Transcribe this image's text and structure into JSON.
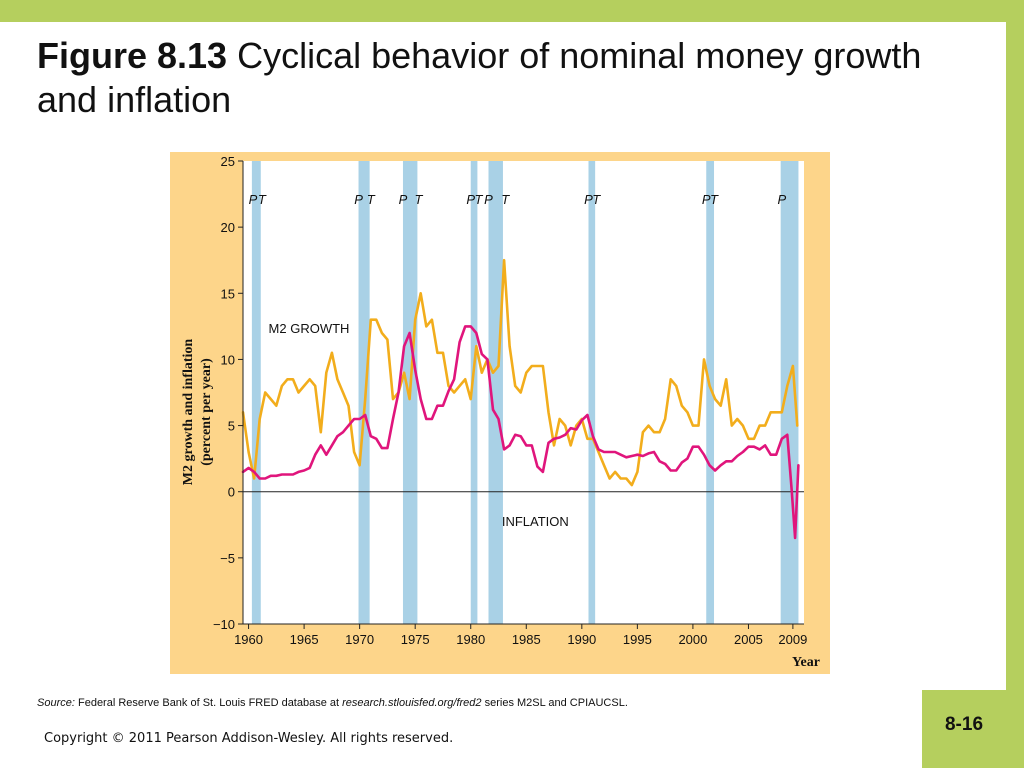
{
  "slide": {
    "figure_label": "Figure 8.13",
    "title": "Cyclical behavior of nominal money growth and inflation",
    "page_number": "8-16",
    "copyright": "Copyright © 2011 Pearson Addison-Wesley. All rights reserved.",
    "source": {
      "label": "Source:",
      "text": "Federal Reserve Bank of St. Louis FRED database at",
      "url": "research.stlouisfed.org/fred2",
      "series": "series M2SL and CPIAUCSL."
    },
    "colors": {
      "accent_bar": "#b5cf5e",
      "chart_background": "#fdd58a",
      "recession_band": "#a9d1e6"
    }
  },
  "chart_data": {
    "type": "line",
    "xlabel": "Year",
    "ylabel_line1": "M2 growth and inflation",
    "ylabel_line2": "(percent per year)",
    "xlim": [
      1959.5,
      2010.0
    ],
    "ylim": [
      -10,
      25
    ],
    "x_ticks": [
      1960,
      1965,
      1970,
      1975,
      1980,
      1985,
      1990,
      1995,
      2000,
      2005,
      2009
    ],
    "y_ticks": [
      -10,
      -5,
      0,
      5,
      10,
      15,
      20,
      25
    ],
    "y_tick_labels": [
      "−10",
      "−5",
      "0",
      "5",
      "10",
      "15",
      "20",
      "25"
    ],
    "grid": false,
    "recessions": [
      [
        1960.3,
        1961.1
      ],
      [
        1969.9,
        1970.9
      ],
      [
        1973.9,
        1975.2
      ],
      [
        1980.0,
        1980.6
      ],
      [
        1981.6,
        1982.9
      ],
      [
        1990.6,
        1991.2
      ],
      [
        2001.2,
        2001.9
      ],
      [
        2007.9,
        2009.5
      ]
    ],
    "peak_trough_labels": [
      {
        "x": 1960.4,
        "text": "P"
      },
      {
        "x": 1961.2,
        "text": "T"
      },
      {
        "x": 1969.9,
        "text": "P"
      },
      {
        "x": 1971.0,
        "text": "T"
      },
      {
        "x": 1973.9,
        "text": "P"
      },
      {
        "x": 1975.3,
        "text": "T"
      },
      {
        "x": 1980.0,
        "text": "P"
      },
      {
        "x": 1980.7,
        "text": "T"
      },
      {
        "x": 1981.6,
        "text": "P"
      },
      {
        "x": 1983.1,
        "text": "T"
      },
      {
        "x": 1990.6,
        "text": "P"
      },
      {
        "x": 1991.3,
        "text": "T"
      },
      {
        "x": 2001.2,
        "text": "P"
      },
      {
        "x": 2001.9,
        "text": "T"
      },
      {
        "x": 2008.0,
        "text": "P"
      }
    ],
    "series": [
      {
        "name": "M2 GROWTH",
        "color": "#f2ad1c",
        "label_pos": [
          1961.8,
          12.0
        ],
        "x": [
          1959.5,
          1960.0,
          1960.5,
          1961.0,
          1961.5,
          1962.0,
          1962.5,
          1963.0,
          1963.5,
          1964.0,
          1964.5,
          1965.0,
          1965.5,
          1966.0,
          1966.5,
          1967.0,
          1967.5,
          1968.0,
          1968.5,
          1969.0,
          1969.5,
          1970.0,
          1970.5,
          1971.0,
          1971.5,
          1972.0,
          1972.5,
          1973.0,
          1973.5,
          1974.0,
          1974.5,
          1975.0,
          1975.5,
          1976.0,
          1976.5,
          1977.0,
          1977.5,
          1978.0,
          1978.5,
          1979.0,
          1979.5,
          1980.0,
          1980.5,
          1981.0,
          1981.5,
          1982.0,
          1982.5,
          1983.0,
          1983.5,
          1984.0,
          1984.5,
          1985.0,
          1985.5,
          1986.0,
          1986.5,
          1987.0,
          1987.5,
          1988.0,
          1988.5,
          1989.0,
          1989.5,
          1990.0,
          1990.5,
          1991.0,
          1991.5,
          1992.0,
          1992.5,
          1993.0,
          1993.5,
          1994.0,
          1994.5,
          1995.0,
          1995.5,
          1996.0,
          1996.5,
          1997.0,
          1997.5,
          1998.0,
          1998.5,
          1999.0,
          1999.5,
          2000.0,
          2000.5,
          2001.0,
          2001.5,
          2002.0,
          2002.5,
          2003.0,
          2003.5,
          2004.0,
          2004.5,
          2005.0,
          2005.5,
          2006.0,
          2006.5,
          2007.0,
          2007.5,
          2008.0,
          2008.5,
          2009.0,
          2009.4
        ],
        "y": [
          6.0,
          3.0,
          1.0,
          5.5,
          7.5,
          7.0,
          6.5,
          8.0,
          8.5,
          8.5,
          7.5,
          8.0,
          8.5,
          8.0,
          4.5,
          9.0,
          10.5,
          8.5,
          7.5,
          6.5,
          3.0,
          2.0,
          7.0,
          13.0,
          13.0,
          12.0,
          11.5,
          7.0,
          7.5,
          9.0,
          7.0,
          13.0,
          15.0,
          12.5,
          13.0,
          10.5,
          10.5,
          8.0,
          7.5,
          8.0,
          8.5,
          7.0,
          11.0,
          9.0,
          10.0,
          9.0,
          9.5,
          17.5,
          11.0,
          8.0,
          7.5,
          9.0,
          9.5,
          9.5,
          9.5,
          6.0,
          3.5,
          5.5,
          5.0,
          3.5,
          5.0,
          5.5,
          4.0,
          4.0,
          3.0,
          2.0,
          1.0,
          1.5,
          1.0,
          1.0,
          0.5,
          1.5,
          4.5,
          5.0,
          4.5,
          4.5,
          5.5,
          8.5,
          8.0,
          6.5,
          6.0,
          5.0,
          5.0,
          10.0,
          8.0,
          7.0,
          6.5,
          8.5,
          5.0,
          5.5,
          5.0,
          4.0,
          4.0,
          5.0,
          5.0,
          6.0,
          6.0,
          6.0,
          8.0,
          9.5,
          5.0
        ]
      },
      {
        "name": "INFLATION",
        "color": "#e0157c",
        "label_pos": [
          1982.8,
          -2.6
        ],
        "x": [
          1959.5,
          1960.0,
          1960.5,
          1961.0,
          1961.5,
          1962.0,
          1962.5,
          1963.0,
          1963.5,
          1964.0,
          1964.5,
          1965.0,
          1965.5,
          1966.0,
          1966.5,
          1967.0,
          1967.5,
          1968.0,
          1968.5,
          1969.0,
          1969.5,
          1970.0,
          1970.5,
          1971.0,
          1971.5,
          1972.0,
          1972.5,
          1973.0,
          1973.5,
          1974.0,
          1974.5,
          1975.0,
          1975.5,
          1976.0,
          1976.5,
          1977.0,
          1977.5,
          1978.0,
          1978.5,
          1979.0,
          1979.5,
          1980.0,
          1980.5,
          1981.0,
          1981.5,
          1982.0,
          1982.5,
          1983.0,
          1983.5,
          1984.0,
          1984.5,
          1985.0,
          1985.5,
          1986.0,
          1986.5,
          1987.0,
          1987.5,
          1988.0,
          1988.5,
          1989.0,
          1989.5,
          1990.0,
          1990.5,
          1991.0,
          1991.5,
          1992.0,
          1992.5,
          1993.0,
          1993.5,
          1994.0,
          1994.5,
          1995.0,
          1995.5,
          1996.0,
          1996.5,
          1997.0,
          1997.5,
          1998.0,
          1998.5,
          1999.0,
          1999.5,
          2000.0,
          2000.5,
          2001.0,
          2001.5,
          2002.0,
          2002.5,
          2003.0,
          2003.5,
          2004.0,
          2004.5,
          2005.0,
          2005.5,
          2006.0,
          2006.5,
          2007.0,
          2007.5,
          2008.0,
          2008.5,
          2008.9,
          2009.2,
          2009.5
        ],
        "y": [
          1.5,
          1.8,
          1.5,
          1.0,
          1.0,
          1.2,
          1.2,
          1.3,
          1.3,
          1.3,
          1.5,
          1.6,
          1.8,
          2.8,
          3.5,
          2.8,
          3.5,
          4.2,
          4.5,
          5.0,
          5.5,
          5.5,
          5.8,
          4.2,
          4.0,
          3.3,
          3.3,
          5.5,
          7.5,
          11.0,
          12.0,
          9.2,
          7.0,
          5.5,
          5.5,
          6.5,
          6.5,
          7.6,
          8.5,
          11.3,
          12.5,
          12.5,
          12.0,
          10.4,
          10.0,
          6.2,
          5.5,
          3.2,
          3.5,
          4.3,
          4.2,
          3.5,
          3.5,
          1.9,
          1.5,
          3.7,
          4.0,
          4.1,
          4.3,
          4.8,
          4.7,
          5.4,
          5.8,
          4.2,
          3.2,
          3.0,
          3.0,
          3.0,
          2.8,
          2.6,
          2.7,
          2.8,
          2.7,
          2.9,
          3.0,
          2.3,
          2.1,
          1.6,
          1.6,
          2.2,
          2.5,
          3.4,
          3.4,
          2.8,
          2.0,
          1.6,
          2.0,
          2.3,
          2.3,
          2.7,
          3.0,
          3.4,
          3.4,
          3.2,
          3.5,
          2.8,
          2.8,
          4.0,
          4.3,
          0.0,
          -3.5,
          2.0
        ]
      }
    ]
  }
}
